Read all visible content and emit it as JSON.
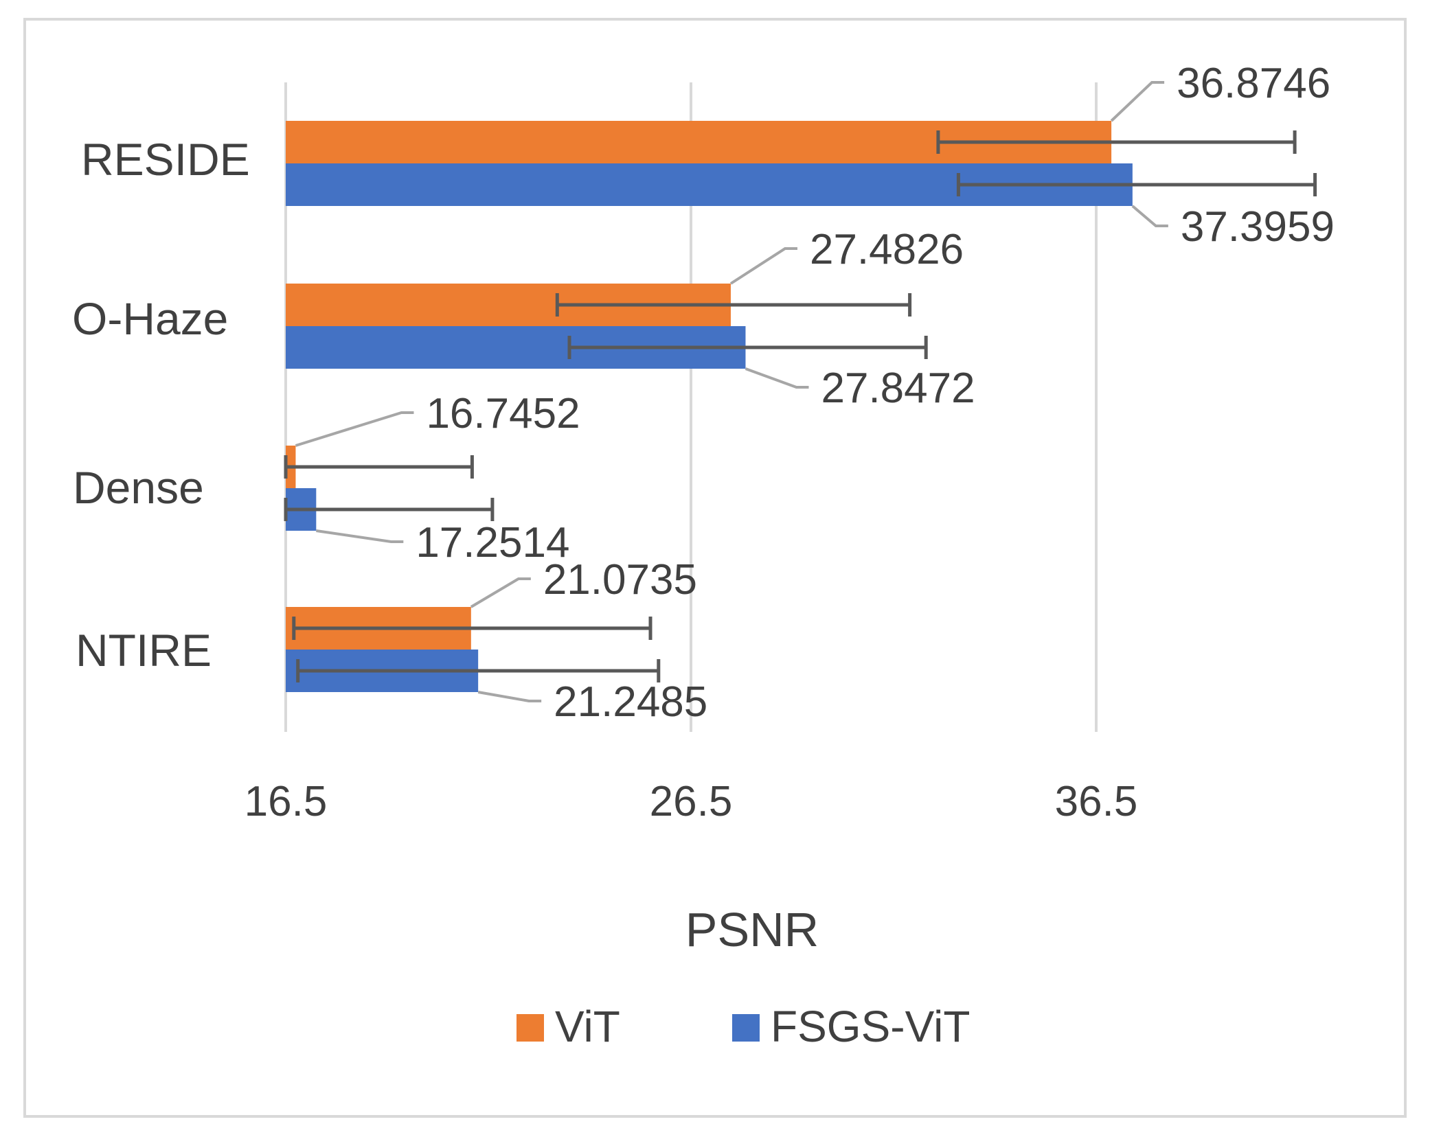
{
  "chart_data": {
    "type": "bar",
    "orientation": "horizontal",
    "title": "",
    "xlabel": "PSNR",
    "ylabel": "",
    "xlim": [
      16.5,
      41.5
    ],
    "xticks": [
      16.5,
      26.5,
      36.5
    ],
    "xtick_labels": [
      "16.5",
      "26.5",
      "36.5"
    ],
    "grid": true,
    "legend_position": "bottom",
    "categories": [
      "RESIDE",
      "O-Haze",
      "Dense",
      "NTIRE"
    ],
    "series": [
      {
        "name": "ViT",
        "color": "#ed7d31",
        "values": [
          36.8746,
          27.4826,
          16.7452,
          21.0735
        ],
        "value_labels": [
          "36.8746",
          "27.4826",
          "16.7452",
          "21.0735"
        ],
        "error_range": [
          [
            32.6,
            41.4
          ],
          [
            23.2,
            31.9
          ],
          [
            16.5,
            21.1
          ],
          [
            16.7,
            25.5
          ]
        ]
      },
      {
        "name": "FSGS-ViT",
        "color": "#4472c4",
        "values": [
          37.3959,
          27.8472,
          17.2514,
          21.2485
        ],
        "value_labels": [
          "37.3959",
          "27.8472",
          "17.2514",
          "21.2485"
        ],
        "error_range": [
          [
            33.1,
            41.9
          ],
          [
            23.5,
            32.3
          ],
          [
            16.5,
            21.6
          ],
          [
            16.8,
            25.7
          ]
        ]
      }
    ]
  }
}
